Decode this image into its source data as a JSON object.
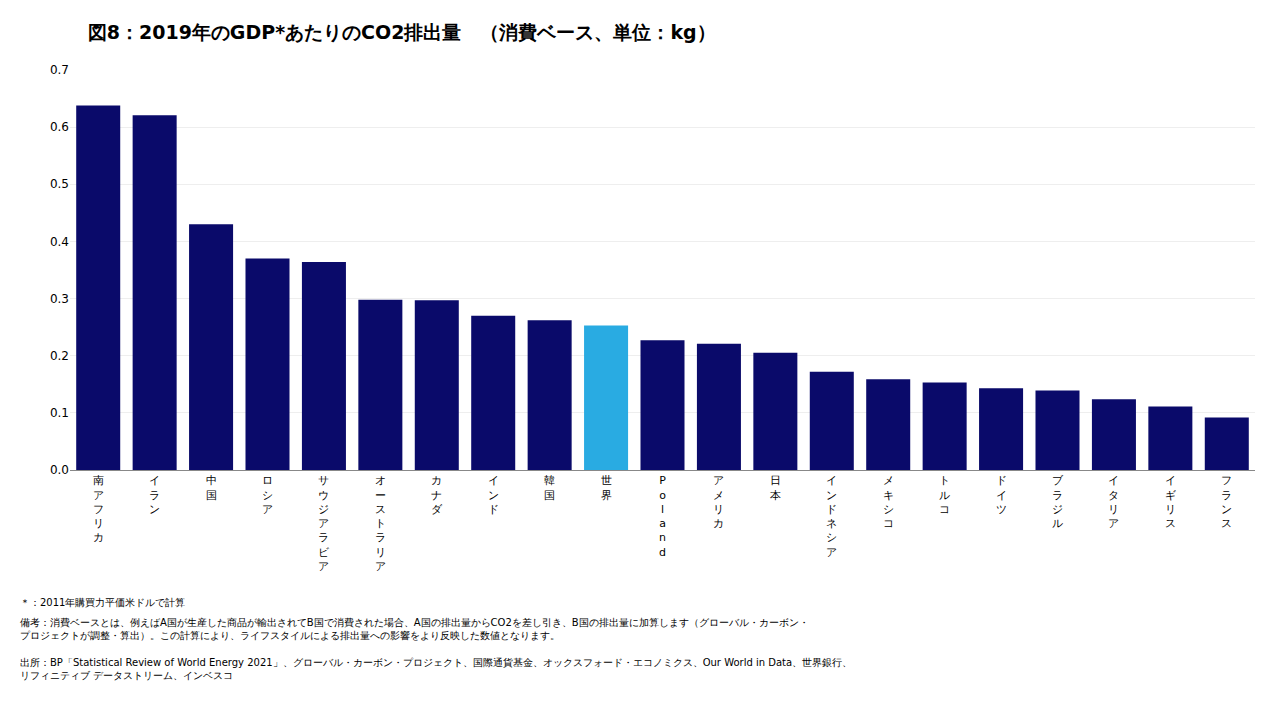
{
  "chart_data": {
    "type": "bar",
    "title": "図8：2019年のGDP*あたりのCO2排出量　（消費ベース、単位：kg）",
    "categories": [
      "南\nア\nフ\nリ\nカ",
      "イ\nラ\nン",
      "中\n国",
      "ロ\nシ\nア",
      "サ\nウ\nジ\nア\nラ\nビ\nア",
      "オ\nー\nス\nト\nラ\nリ\nア",
      "カ\nナ\nダ",
      "イ\nン\nド",
      "韓\n国",
      "世\n界",
      "P\no\nl\na\nn\nd",
      "ア\nメ\nリ\nカ",
      "日\n本",
      "イ\nン\nド\nネ\nシ\nア",
      "メ\nキ\nシ\nコ",
      "ト\nル\nコ",
      "ド\nイ\nツ",
      "ブ\nラ\nジ\nル",
      "イ\nタ\nリ\nア",
      "イ\nギ\nリ\nス",
      "フ\nラ\nン\nス"
    ],
    "values": [
      0.638,
      0.621,
      0.43,
      0.37,
      0.364,
      0.298,
      0.297,
      0.27,
      0.262,
      0.253,
      0.227,
      0.221,
      0.205,
      0.172,
      0.159,
      0.153,
      0.143,
      0.139,
      0.124,
      0.111,
      0.092
    ],
    "colors": [
      "#0a0a6a",
      "#0a0a6a",
      "#0a0a6a",
      "#0a0a6a",
      "#0a0a6a",
      "#0a0a6a",
      "#0a0a6a",
      "#0a0a6a",
      "#0a0a6a",
      "#29abe2",
      "#0a0a6a",
      "#0a0a6a",
      "#0a0a6a",
      "#0a0a6a",
      "#0a0a6a",
      "#0a0a6a",
      "#0a0a6a",
      "#0a0a6a",
      "#0a0a6a",
      "#0a0a6a",
      "#0a0a6a"
    ],
    "ylim": [
      0.0,
      0.7
    ],
    "yticks": [
      {
        "value": 0.0,
        "label": "0.0"
      },
      0.1,
      0.2,
      0.3,
      0.4,
      0.5,
      0.6,
      0.7
    ],
    "grid": true,
    "annotations": [
      "＊：2011年購買力平価米ドルで計算",
      "備考：消費ベースとは、例えばA国が生産した商品が輸出されてB国で消費された場合、A国の排出量からCO2を差し引き、B国の排出量に加算します（グローバル・カーボン・\nプロジェクトが調整・算出）。この計算により、ライフスタイルによる排出量への影響をより反映した数値となります。",
      "出所：BP「Statistical Review of World Energy 2021」、グローバル・カーボン・プロジェクト、国際通貨基金、オックスフォード・エコノミクス、Our World in Data、世界銀行、\nリフィニティブ データストリーム、インベスコ"
    ]
  }
}
